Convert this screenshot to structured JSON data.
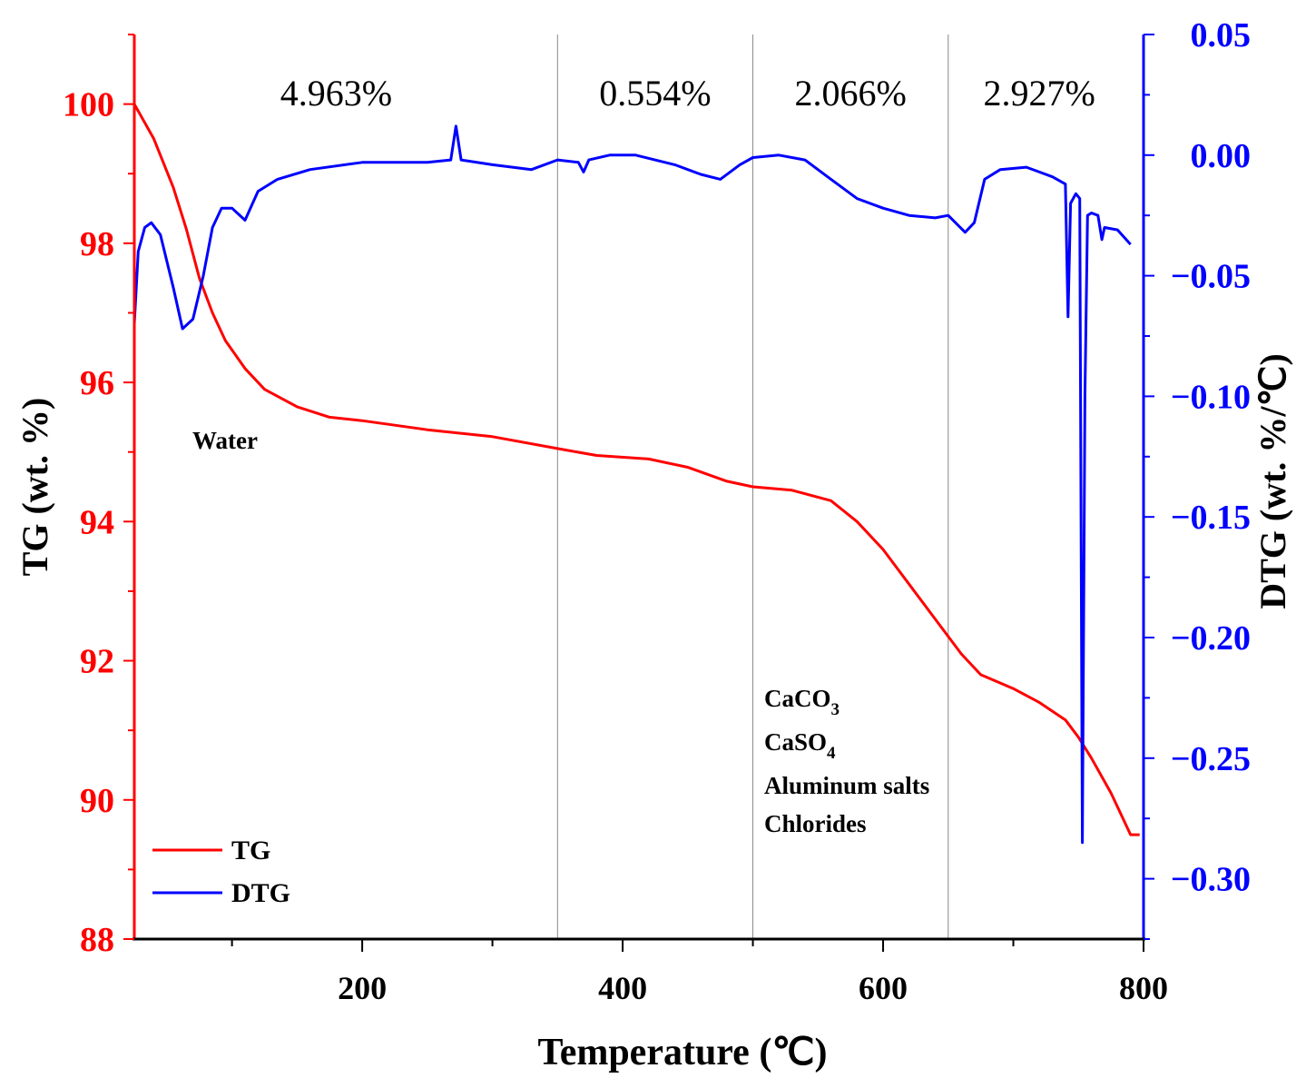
{
  "chart_data": {
    "type": "line",
    "title": "",
    "xlabel": "Temperature (℃)",
    "ylabel_left": "TG (wt. %)",
    "ylabel_right": "DTG (wt. %/℃)",
    "xlim": [
      25,
      800
    ],
    "ylim_left": [
      88,
      101
    ],
    "ylim_right": [
      -0.325,
      0.05
    ],
    "x_ticks": [
      200,
      400,
      600,
      800
    ],
    "y_left_ticks": [
      88,
      90,
      92,
      94,
      96,
      98,
      100
    ],
    "y_right_ticks": [
      0.05,
      0.0,
      -0.05,
      -0.1,
      -0.15,
      -0.2,
      -0.25,
      -0.3
    ],
    "y_right_tick_labels": [
      "0.05",
      "0.00",
      "−0.05",
      "−0.10",
      "−0.15",
      "−0.20",
      "−0.25",
      "−0.30"
    ],
    "vlines": [
      350,
      500,
      650
    ],
    "stage_labels": [
      {
        "x": 180,
        "text": "4.963%"
      },
      {
        "x": 425,
        "text": "0.554%"
      },
      {
        "x": 575,
        "text": "2.066%"
      },
      {
        "x": 720,
        "text": "2.927%"
      }
    ],
    "annotations": {
      "water": "Water",
      "species": [
        {
          "base": "CaCO",
          "sub": "3"
        },
        {
          "base": "CaSO",
          "sub": "4"
        },
        {
          "base": "Aluminum salts",
          "sub": ""
        },
        {
          "base": "Chlorides",
          "sub": ""
        }
      ]
    },
    "legend": {
      "position": "bottom-left",
      "entries": [
        {
          "name": "TG",
          "color": "#ff0000"
        },
        {
          "name": "DTG",
          "color": "#0000ff"
        }
      ]
    },
    "series": [
      {
        "name": "TG",
        "axis": "left",
        "color": "#ff0000",
        "points": [
          [
            25,
            100
          ],
          [
            40,
            99.5
          ],
          [
            55,
            98.8
          ],
          [
            65,
            98.2
          ],
          [
            75,
            97.5
          ],
          [
            85,
            97.0
          ],
          [
            95,
            96.6
          ],
          [
            110,
            96.2
          ],
          [
            125,
            95.9
          ],
          [
            150,
            95.65
          ],
          [
            175,
            95.5
          ],
          [
            200,
            95.45
          ],
          [
            250,
            95.32
          ],
          [
            270,
            95.28
          ],
          [
            300,
            95.22
          ],
          [
            350,
            95.05
          ],
          [
            380,
            94.95
          ],
          [
            420,
            94.9
          ],
          [
            450,
            94.78
          ],
          [
            480,
            94.58
          ],
          [
            500,
            94.5
          ],
          [
            530,
            94.45
          ],
          [
            560,
            94.3
          ],
          [
            580,
            94.0
          ],
          [
            600,
            93.6
          ],
          [
            620,
            93.1
          ],
          [
            640,
            92.6
          ],
          [
            660,
            92.1
          ],
          [
            675,
            91.8
          ],
          [
            700,
            91.6
          ],
          [
            720,
            91.4
          ],
          [
            740,
            91.15
          ],
          [
            750,
            90.9
          ],
          [
            760,
            90.6
          ],
          [
            775,
            90.1
          ],
          [
            790,
            89.5
          ],
          [
            797,
            89.5
          ]
        ]
      },
      {
        "name": "DTG",
        "axis": "right",
        "color": "#0000ff",
        "points": [
          [
            25,
            -0.07
          ],
          [
            28,
            -0.04
          ],
          [
            33,
            -0.03
          ],
          [
            38,
            -0.028
          ],
          [
            45,
            -0.033
          ],
          [
            55,
            -0.055
          ],
          [
            62,
            -0.072
          ],
          [
            70,
            -0.068
          ],
          [
            78,
            -0.05
          ],
          [
            85,
            -0.03
          ],
          [
            92,
            -0.022
          ],
          [
            100,
            -0.022
          ],
          [
            110,
            -0.027
          ],
          [
            120,
            -0.015
          ],
          [
            135,
            -0.01
          ],
          [
            160,
            -0.006
          ],
          [
            200,
            -0.003
          ],
          [
            250,
            -0.003
          ],
          [
            268,
            -0.002
          ],
          [
            272,
            0.012
          ],
          [
            276,
            -0.002
          ],
          [
            300,
            -0.004
          ],
          [
            330,
            -0.006
          ],
          [
            350,
            -0.002
          ],
          [
            366,
            -0.003
          ],
          [
            370,
            -0.007
          ],
          [
            374,
            -0.002
          ],
          [
            390,
            0.0
          ],
          [
            410,
            0.0
          ],
          [
            440,
            -0.004
          ],
          [
            460,
            -0.008
          ],
          [
            475,
            -0.01
          ],
          [
            490,
            -0.004
          ],
          [
            500,
            -0.001
          ],
          [
            520,
            0.0
          ],
          [
            540,
            -0.002
          ],
          [
            560,
            -0.01
          ],
          [
            580,
            -0.018
          ],
          [
            600,
            -0.022
          ],
          [
            620,
            -0.025
          ],
          [
            640,
            -0.026
          ],
          [
            650,
            -0.025
          ],
          [
            663,
            -0.032
          ],
          [
            670,
            -0.028
          ],
          [
            678,
            -0.01
          ],
          [
            690,
            -0.006
          ],
          [
            710,
            -0.005
          ],
          [
            730,
            -0.009
          ],
          [
            740,
            -0.012
          ],
          [
            742,
            -0.067
          ],
          [
            744,
            -0.02
          ],
          [
            748,
            -0.016
          ],
          [
            751,
            -0.018
          ],
          [
            753,
            -0.285
          ],
          [
            755,
            -0.1
          ],
          [
            757,
            -0.025
          ],
          [
            760,
            -0.024
          ],
          [
            765,
            -0.025
          ],
          [
            768,
            -0.035
          ],
          [
            770,
            -0.03
          ],
          [
            780,
            -0.031
          ],
          [
            790,
            -0.037
          ]
        ]
      }
    ]
  }
}
